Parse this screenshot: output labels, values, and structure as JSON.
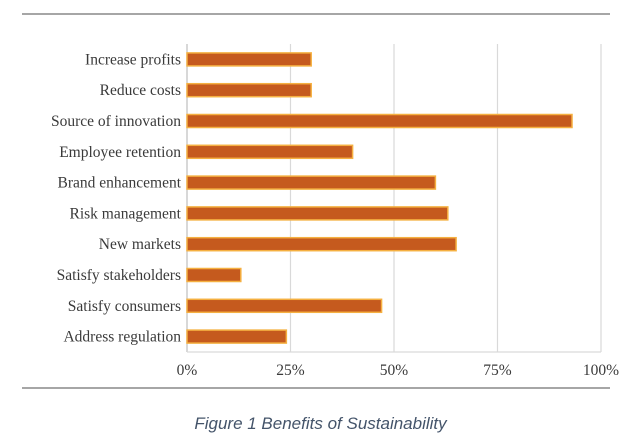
{
  "chart_data": {
    "type": "bar",
    "orientation": "horizontal",
    "title": "",
    "xlabel": "",
    "ylabel": "",
    "categories": [
      "Increase profits",
      "Reduce costs",
      "Source of innovation",
      "Employee retention",
      "Brand enhancement",
      "Risk management",
      "New markets",
      "Satisfy stakeholders",
      "Satisfy consumers",
      "Address regulation"
    ],
    "values": [
      30,
      30,
      93,
      40,
      60,
      63,
      65,
      13,
      47,
      24
    ],
    "unit": "%",
    "xlim": [
      0,
      100
    ],
    "xticks": [
      0,
      25,
      50,
      75,
      100
    ],
    "xtick_labels": [
      "0%",
      "25%",
      "50%",
      "75%",
      "100%"
    ],
    "grid": "vertical",
    "legend": "none",
    "bar_color": "#c55a1e",
    "bar_edge_color": "#f5b041"
  },
  "caption": "Figure 1 Benefits of Sustainability"
}
